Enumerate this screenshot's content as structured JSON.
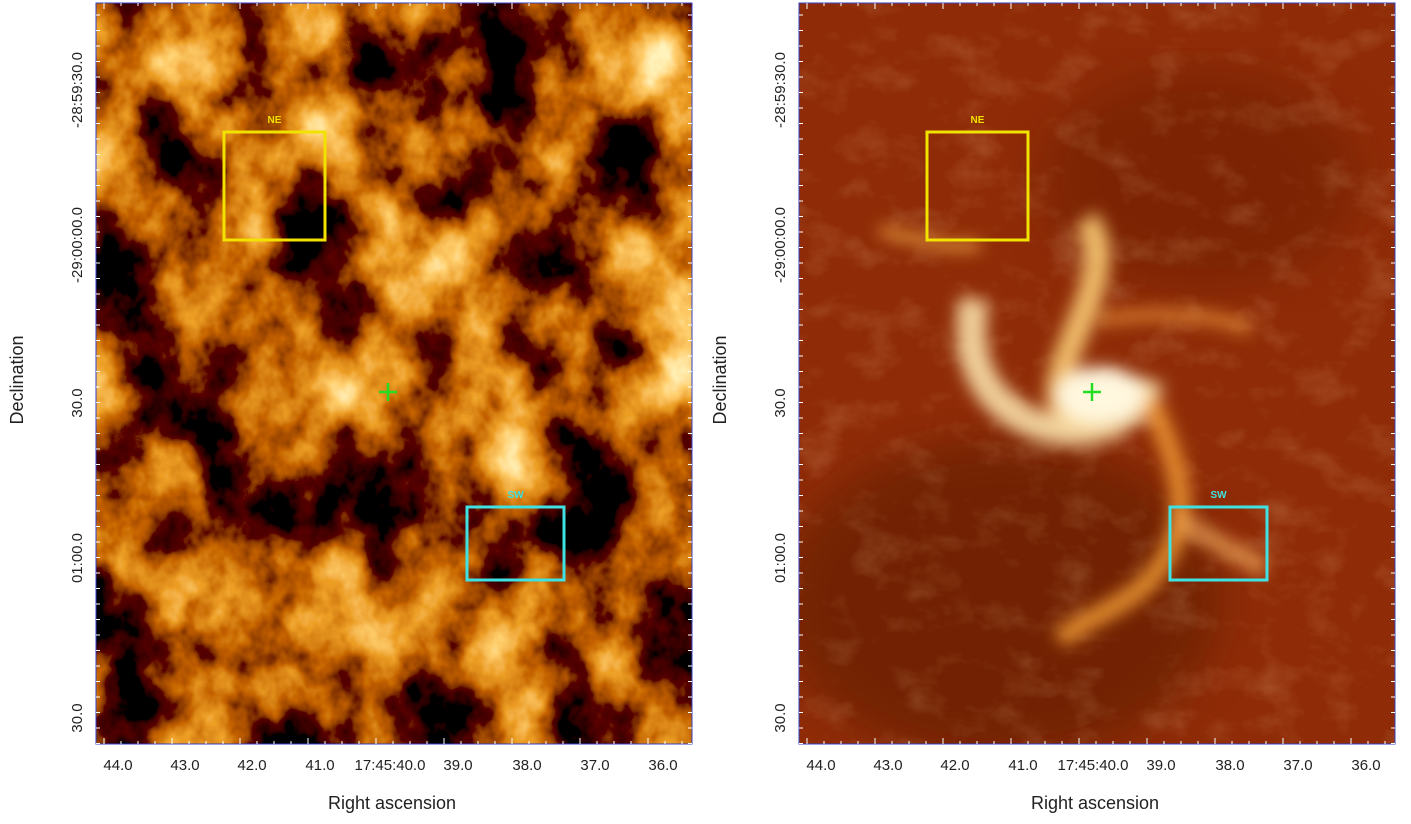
{
  "panels": [
    {
      "x_axis_label": "Right ascension",
      "y_axis_label": "Declination",
      "x_tick_labels": [
        "44.0",
        "43.0",
        "42.0",
        "41.0",
        "17:45:40.0",
        "39.0",
        "38.0",
        "37.0",
        "36.0"
      ],
      "y_tick_labels": [
        "-28:59:30.0",
        "-29:00:00.0",
        "30.0",
        "01:00.0",
        "30.0"
      ],
      "regions": [
        {
          "label": "NE"
        },
        {
          "label": "SW"
        }
      ]
    },
    {
      "x_axis_label": "Right ascension",
      "y_axis_label": "Declination",
      "x_tick_labels": [
        "44.0",
        "43.0",
        "42.0",
        "41.0",
        "17:45:40.0",
        "39.0",
        "38.0",
        "37.0",
        "36.0"
      ],
      "y_tick_labels": [
        "-28:59:30.0",
        "-29:00:00.0",
        "30.0",
        "01:00.0",
        "30.0"
      ],
      "regions": [
        {
          "label": "NE"
        },
        {
          "label": "SW"
        }
      ]
    }
  ]
}
